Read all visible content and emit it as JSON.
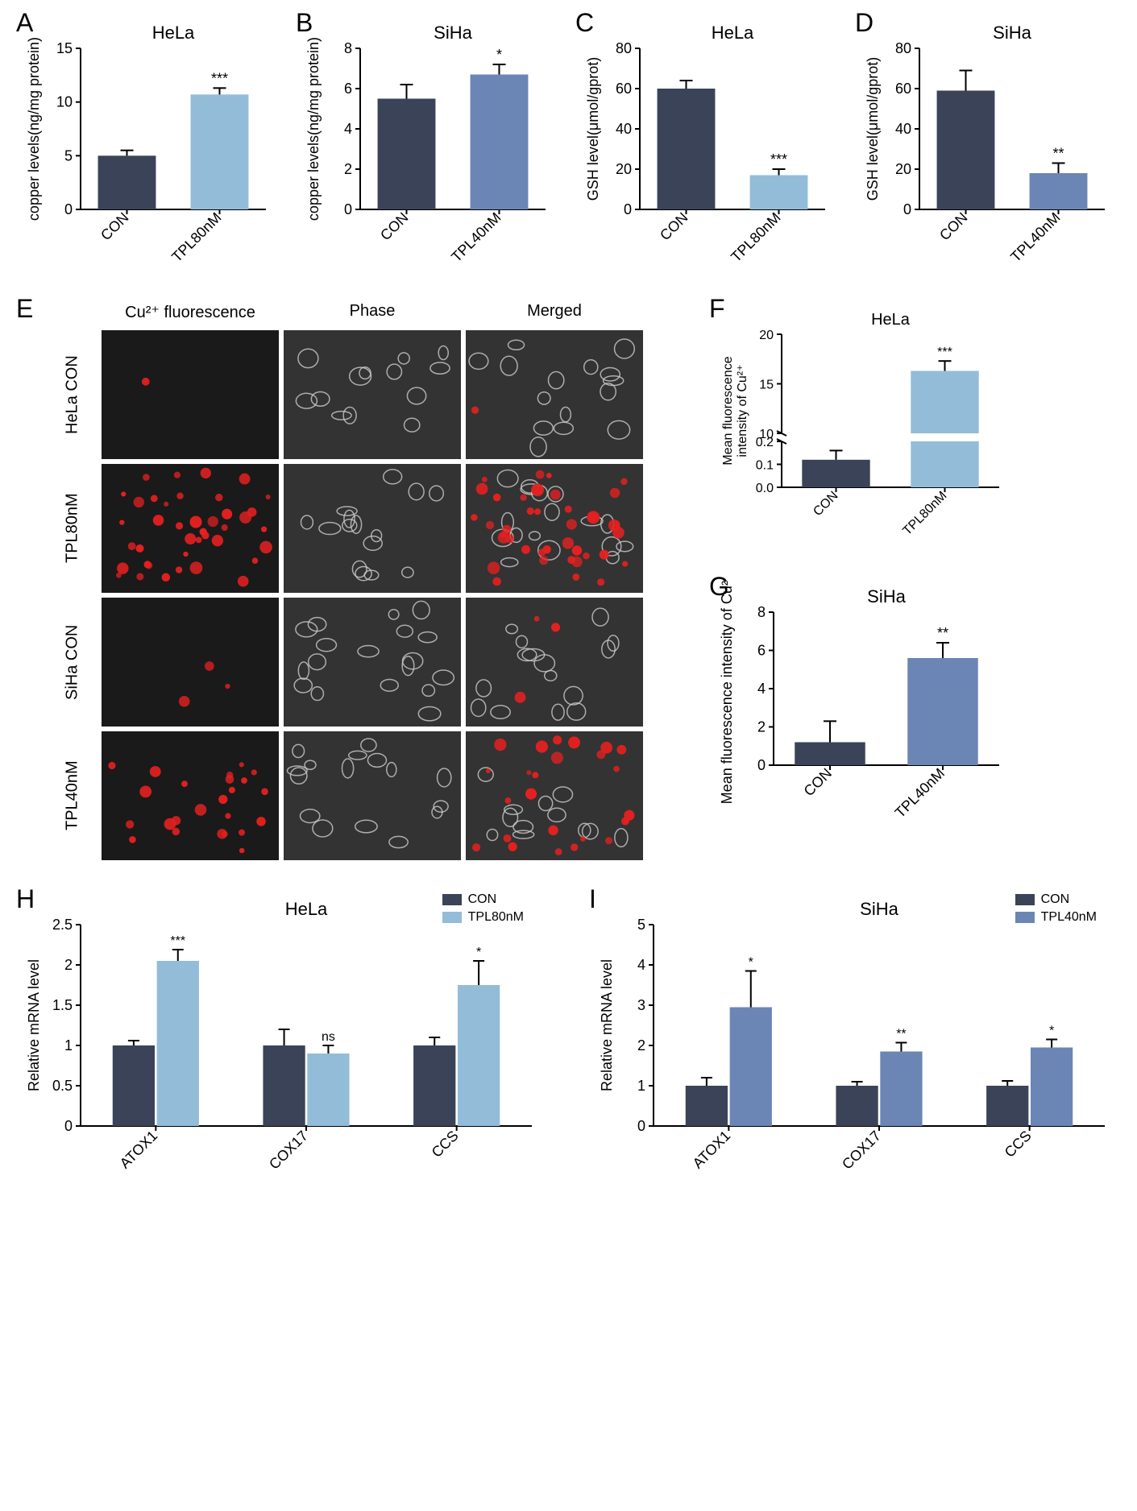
{
  "colors": {
    "con": "#3a4358",
    "hela_tpl": "#93bcd9",
    "siha_tpl": "#6b86b5",
    "axis": "#000000",
    "bg": "#ffffff"
  },
  "panelA": {
    "label": "A",
    "title": "HeLa",
    "ylabel": "copper levels(ng/mg protein)",
    "categories": [
      "CON",
      "TPL80nM"
    ],
    "values": [
      5.0,
      10.7
    ],
    "errors": [
      0.5,
      0.6
    ],
    "bar_colors": [
      "#3a4358",
      "#93bcd9"
    ],
    "ylim": [
      0,
      15
    ],
    "ytick_step": 5,
    "sig": [
      "",
      "***"
    ]
  },
  "panelB": {
    "label": "B",
    "title": "SiHa",
    "ylabel": "copper levels(ng/mg protein)",
    "categories": [
      "CON",
      "TPL40nM"
    ],
    "values": [
      5.5,
      6.7
    ],
    "errors": [
      0.7,
      0.5
    ],
    "bar_colors": [
      "#3a4358",
      "#6b86b5"
    ],
    "ylim": [
      0,
      8
    ],
    "ytick_step": 2,
    "sig": [
      "",
      "*"
    ]
  },
  "panelC": {
    "label": "C",
    "title": "HeLa",
    "ylabel": "GSH level(μmol/gprot)",
    "categories": [
      "CON",
      "TPL80nM"
    ],
    "values": [
      60,
      17
    ],
    "errors": [
      4,
      3
    ],
    "bar_colors": [
      "#3a4358",
      "#93bcd9"
    ],
    "ylim": [
      0,
      80
    ],
    "ytick_step": 20,
    "sig": [
      "",
      "***"
    ]
  },
  "panelD": {
    "label": "D",
    "title": "SiHa",
    "ylabel": "GSH level(μmol/gprot)",
    "categories": [
      "CON",
      "TPL40nM"
    ],
    "values": [
      59,
      18
    ],
    "errors": [
      10,
      5
    ],
    "bar_colors": [
      "#3a4358",
      "#6b86b5"
    ],
    "ylim": [
      0,
      80
    ],
    "ytick_step": 20,
    "sig": [
      "",
      "**"
    ]
  },
  "panelE": {
    "label": "E",
    "col_headers": [
      "Cu²⁺ fluorescence",
      "Phase",
      "Merged"
    ],
    "row_labels": [
      "HeLa CON",
      "TPL80nM",
      "SiHa CON",
      "TPL40nM"
    ],
    "fluor_color": "#e62020",
    "fluor_intensity": [
      0.02,
      1.0,
      0.08,
      0.6
    ]
  },
  "panelF": {
    "label": "F",
    "title": "HeLa",
    "ylabel": "Mean fluorescence\nintensity of Cu²⁺",
    "categories": [
      "CON",
      "TPL80nM"
    ],
    "values": [
      0.12,
      16.3
    ],
    "errors": [
      0.04,
      1.0
    ],
    "bar_colors": [
      "#3a4358",
      "#93bcd9"
    ],
    "broken_axis": true,
    "lower_lim": [
      0,
      0.2
    ],
    "lower_tick_step": 0.1,
    "upper_lim": [
      10,
      20
    ],
    "upper_tick_step": 5,
    "sig": [
      "",
      "***"
    ]
  },
  "panelG": {
    "label": "G",
    "title": "SiHa",
    "ylabel": "Mean fluorescence\nintensity of Cu²⁺",
    "categories": [
      "CON",
      "TPL40nM"
    ],
    "values": [
      1.2,
      5.6
    ],
    "errors": [
      1.1,
      0.8
    ],
    "bar_colors": [
      "#3a4358",
      "#6b86b5"
    ],
    "ylim": [
      0,
      8
    ],
    "ytick_step": 2,
    "sig": [
      "",
      "**"
    ]
  },
  "panelH": {
    "label": "H",
    "title": "HeLa",
    "ylabel": "Relative mRNA level",
    "categories": [
      "ATOX1",
      "COX17",
      "CCS"
    ],
    "groups": [
      "CON",
      "TPL80nM"
    ],
    "values": [
      [
        1.0,
        2.05
      ],
      [
        1.0,
        0.9
      ],
      [
        1.0,
        1.75
      ]
    ],
    "errors": [
      [
        0.06,
        0.14
      ],
      [
        0.2,
        0.1
      ],
      [
        0.1,
        0.3
      ]
    ],
    "bar_colors": [
      "#3a4358",
      "#93bcd9"
    ],
    "ylim": [
      0,
      2.5
    ],
    "ytick_step": 0.5,
    "sig": [
      "***",
      "ns",
      "*"
    ]
  },
  "panelI": {
    "label": "I",
    "title": "SiHa",
    "ylabel": "Relative mRNA level",
    "categories": [
      "ATOX1",
      "COX17",
      "CCS"
    ],
    "groups": [
      "CON",
      "TPL40nM"
    ],
    "values": [
      [
        1.0,
        2.95
      ],
      [
        1.0,
        1.85
      ],
      [
        1.0,
        1.95
      ]
    ],
    "errors": [
      [
        0.2,
        0.9
      ],
      [
        0.1,
        0.22
      ],
      [
        0.12,
        0.2
      ]
    ],
    "bar_colors": [
      "#3a4358",
      "#6b86b5"
    ],
    "ylim": [
      0,
      5
    ],
    "ytick_step": 1,
    "sig": [
      "*",
      "**",
      "*"
    ]
  }
}
